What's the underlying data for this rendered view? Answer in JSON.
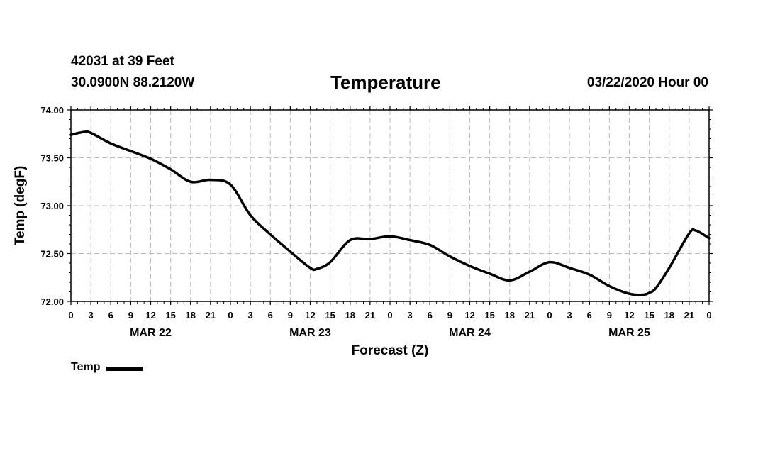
{
  "header": {
    "station": "42031 at 39 Feet",
    "coordinates": "30.0900N 88.2120W",
    "title": "Temperature",
    "run": "03/22/2020 Hour 00"
  },
  "chart_data": {
    "type": "line",
    "title": "Temperature",
    "xlabel": "Forecast (Z)",
    "ylabel": "Temp (degF)",
    "ylim": [
      72.0,
      74.0
    ],
    "y_ticks": [
      "72.00",
      "72.50",
      "73.00",
      "73.50",
      "74.00"
    ],
    "x_range_hours": [
      0,
      96
    ],
    "x_tick_labels": [
      "0",
      "3",
      "6",
      "9",
      "12",
      "15",
      "18",
      "21",
      "0",
      "3",
      "6",
      "9",
      "12",
      "15",
      "18",
      "21",
      "0",
      "3",
      "6",
      "9",
      "12",
      "15",
      "18",
      "21",
      "0",
      "3",
      "6",
      "9",
      "12",
      "15",
      "18",
      "21",
      "0"
    ],
    "day_labels": [
      {
        "hour": 12,
        "label": "MAR 22"
      },
      {
        "hour": 36,
        "label": "MAR 23"
      },
      {
        "hour": 60,
        "label": "MAR 24"
      },
      {
        "hour": 84,
        "label": "MAR 25"
      }
    ],
    "grid": true,
    "series": [
      {
        "name": "Temp",
        "color": "#000000",
        "x": [
          0,
          2,
          3,
          6,
          9,
          12,
          15,
          18,
          21,
          24,
          27,
          30,
          33,
          36,
          37,
          39,
          42,
          45,
          48,
          51,
          54,
          57,
          60,
          63,
          66,
          69,
          72,
          75,
          78,
          81,
          84,
          86,
          87,
          88,
          90,
          93,
          94,
          96
        ],
        "values": [
          73.74,
          73.77,
          73.76,
          73.65,
          73.57,
          73.49,
          73.38,
          73.25,
          73.27,
          73.22,
          72.9,
          72.7,
          72.52,
          72.35,
          72.34,
          72.41,
          72.64,
          72.65,
          72.68,
          72.64,
          72.59,
          72.47,
          72.37,
          72.29,
          72.22,
          72.31,
          72.41,
          72.35,
          72.28,
          72.16,
          72.08,
          72.07,
          72.09,
          72.14,
          72.35,
          72.71,
          72.74,
          72.66
        ]
      }
    ],
    "legend": {
      "label": "Temp",
      "position": "bottom-left"
    }
  }
}
